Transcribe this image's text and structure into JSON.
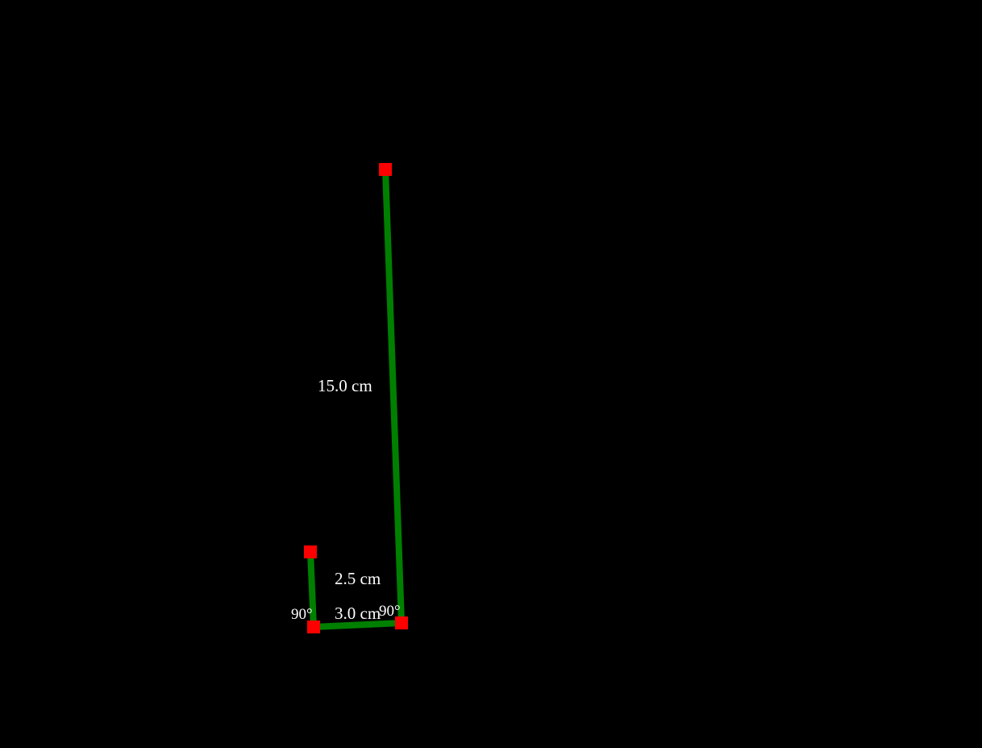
{
  "colors": {
    "segment": "#008000",
    "handle": "#ff0000",
    "label": "#ffffff",
    "background": "#000000"
  },
  "segments": [
    {
      "length_label": "15.0 cm"
    },
    {
      "length_label": "3.0 cm"
    },
    {
      "length_label": "2.5 cm"
    }
  ],
  "angles": [
    {
      "label": "90°"
    },
    {
      "label": "90°"
    }
  ]
}
